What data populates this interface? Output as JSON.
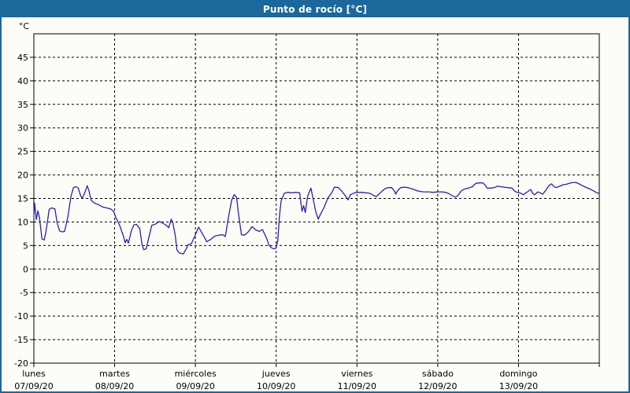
{
  "window": {
    "title": "Punto de rocío [°C]"
  },
  "colors": {
    "title_bar": "#1a689c",
    "frame_border": "#1a689c",
    "title_text": "#ffffff",
    "plot_background": "#fdfdf8",
    "axis": "#000000",
    "grid": "#000000",
    "line": "#2121c0"
  },
  "chart_data": {
    "type": "line",
    "title": "Punto de rocío [°C]",
    "ylabel": "°C",
    "ylim": [
      -20,
      50
    ],
    "y_ticks": [
      45,
      40,
      35,
      30,
      25,
      20,
      15,
      10,
      5,
      0,
      -5,
      -10,
      -15,
      -20
    ],
    "xlim_days": [
      0,
      7
    ],
    "grid": "dashed",
    "legend_position": "none",
    "x_axis_days": [
      {
        "name": "lunes",
        "date": "07/09/20"
      },
      {
        "name": "martes",
        "date": "08/09/20"
      },
      {
        "name": "miércoles",
        "date": "09/09/20"
      },
      {
        "name": "jueves",
        "date": "10/09/20"
      },
      {
        "name": "viernes",
        "date": "11/09/20"
      },
      {
        "name": "sábado",
        "date": "12/09/20"
      },
      {
        "name": "domingo",
        "date": "13/09/20"
      }
    ],
    "series": [
      {
        "name": "Punto de rocío",
        "color": "#2121c0",
        "points": [
          [
            0.0,
            11.5
          ],
          [
            0.01,
            14.0
          ],
          [
            0.03,
            10.5
          ],
          [
            0.05,
            12.4
          ],
          [
            0.07,
            10.8
          ],
          [
            0.1,
            6.4
          ],
          [
            0.13,
            6.2
          ],
          [
            0.15,
            8.0
          ],
          [
            0.19,
            12.7
          ],
          [
            0.22,
            13.0
          ],
          [
            0.26,
            12.8
          ],
          [
            0.29,
            9.7
          ],
          [
            0.32,
            8.1
          ],
          [
            0.35,
            7.9
          ],
          [
            0.38,
            8.0
          ],
          [
            0.42,
            11.0
          ],
          [
            0.46,
            15.5
          ],
          [
            0.49,
            17.3
          ],
          [
            0.52,
            17.5
          ],
          [
            0.55,
            17.2
          ],
          [
            0.58,
            15.5
          ],
          [
            0.6,
            15.1
          ],
          [
            0.63,
            16.2
          ],
          [
            0.66,
            17.7
          ],
          [
            0.68,
            16.8
          ],
          [
            0.71,
            14.6
          ],
          [
            0.75,
            14.0
          ],
          [
            0.8,
            13.7
          ],
          [
            0.85,
            13.2
          ],
          [
            0.9,
            13.0
          ],
          [
            0.95,
            12.8
          ],
          [
            0.99,
            12.2
          ],
          [
            1.01,
            11.1
          ],
          [
            1.06,
            9.4
          ],
          [
            1.11,
            6.9
          ],
          [
            1.13,
            5.6
          ],
          [
            1.15,
            6.3
          ],
          [
            1.17,
            5.5
          ],
          [
            1.21,
            8.3
          ],
          [
            1.24,
            9.4
          ],
          [
            1.27,
            9.5
          ],
          [
            1.31,
            8.6
          ],
          [
            1.34,
            5.2
          ],
          [
            1.36,
            4.1
          ],
          [
            1.39,
            4.3
          ],
          [
            1.43,
            7.2
          ],
          [
            1.46,
            9.3
          ],
          [
            1.5,
            9.5
          ],
          [
            1.55,
            10.1
          ],
          [
            1.58,
            9.9
          ],
          [
            1.63,
            9.4
          ],
          [
            1.67,
            8.8
          ],
          [
            1.7,
            10.6
          ],
          [
            1.72,
            9.9
          ],
          [
            1.75,
            7.2
          ],
          [
            1.77,
            4.1
          ],
          [
            1.8,
            3.4
          ],
          [
            1.85,
            3.2
          ],
          [
            1.89,
            4.4
          ],
          [
            1.91,
            5.2
          ],
          [
            1.95,
            5.4
          ],
          [
            1.99,
            6.9
          ],
          [
            2.04,
            8.9
          ],
          [
            2.09,
            7.4
          ],
          [
            2.14,
            5.8
          ],
          [
            2.19,
            6.3
          ],
          [
            2.24,
            7.0
          ],
          [
            2.29,
            7.2
          ],
          [
            2.34,
            7.3
          ],
          [
            2.37,
            6.9
          ],
          [
            2.41,
            11.1
          ],
          [
            2.45,
            14.7
          ],
          [
            2.48,
            15.8
          ],
          [
            2.51,
            15.2
          ],
          [
            2.53,
            12.2
          ],
          [
            2.57,
            7.3
          ],
          [
            2.61,
            7.2
          ],
          [
            2.66,
            8.0
          ],
          [
            2.7,
            9.0
          ],
          [
            2.75,
            8.3
          ],
          [
            2.79,
            8.0
          ],
          [
            2.83,
            8.4
          ],
          [
            2.88,
            6.6
          ],
          [
            2.91,
            5.1
          ],
          [
            2.95,
            4.4
          ],
          [
            2.98,
            4.3
          ],
          [
            3.0,
            4.5
          ],
          [
            3.02,
            6.1
          ],
          [
            3.04,
            11.1
          ],
          [
            3.06,
            14.4
          ],
          [
            3.1,
            16.1
          ],
          [
            3.14,
            16.3
          ],
          [
            3.19,
            16.2
          ],
          [
            3.24,
            16.3
          ],
          [
            3.29,
            16.2
          ],
          [
            3.32,
            12.3
          ],
          [
            3.34,
            13.5
          ],
          [
            3.36,
            12.0
          ],
          [
            3.39,
            15.5
          ],
          [
            3.43,
            17.2
          ],
          [
            3.45,
            15.5
          ],
          [
            3.49,
            12.2
          ],
          [
            3.52,
            10.6
          ],
          [
            3.55,
            11.7
          ],
          [
            3.59,
            13.0
          ],
          [
            3.64,
            15.1
          ],
          [
            3.69,
            16.3
          ],
          [
            3.72,
            17.4
          ],
          [
            3.77,
            17.3
          ],
          [
            3.81,
            16.6
          ],
          [
            3.86,
            15.5
          ],
          [
            3.89,
            14.7
          ],
          [
            3.92,
            15.8
          ],
          [
            3.97,
            16.2
          ],
          [
            4.0,
            16.3
          ],
          [
            4.05,
            16.3
          ],
          [
            4.11,
            16.2
          ],
          [
            4.16,
            16.1
          ],
          [
            4.21,
            15.6
          ],
          [
            4.24,
            15.4
          ],
          [
            4.29,
            16.2
          ],
          [
            4.34,
            17.0
          ],
          [
            4.38,
            17.3
          ],
          [
            4.43,
            17.3
          ],
          [
            4.47,
            16.4
          ],
          [
            4.48,
            15.9
          ],
          [
            4.5,
            16.6
          ],
          [
            4.54,
            17.3
          ],
          [
            4.59,
            17.4
          ],
          [
            4.63,
            17.3
          ],
          [
            4.69,
            17.0
          ],
          [
            4.75,
            16.6
          ],
          [
            4.82,
            16.4
          ],
          [
            4.89,
            16.4
          ],
          [
            4.94,
            16.3
          ],
          [
            5.0,
            16.4
          ],
          [
            5.04,
            16.4
          ],
          [
            5.1,
            16.3
          ],
          [
            5.14,
            16.0
          ],
          [
            5.19,
            15.5
          ],
          [
            5.22,
            15.3
          ],
          [
            5.25,
            15.6
          ],
          [
            5.29,
            16.6
          ],
          [
            5.33,
            17.0
          ],
          [
            5.38,
            17.2
          ],
          [
            5.43,
            17.5
          ],
          [
            5.47,
            18.2
          ],
          [
            5.51,
            18.3
          ],
          [
            5.56,
            18.3
          ],
          [
            5.59,
            17.8
          ],
          [
            5.61,
            17.2
          ],
          [
            5.66,
            17.2
          ],
          [
            5.7,
            17.3
          ],
          [
            5.74,
            17.6
          ],
          [
            5.78,
            17.5
          ],
          [
            5.82,
            17.4
          ],
          [
            5.87,
            17.3
          ],
          [
            5.92,
            17.2
          ],
          [
            5.95,
            16.6
          ],
          [
            5.98,
            16.3
          ],
          [
            6.01,
            16.2
          ],
          [
            6.03,
            16.1
          ],
          [
            6.06,
            15.8
          ],
          [
            6.09,
            16.2
          ],
          [
            6.12,
            16.5
          ],
          [
            6.15,
            16.9
          ],
          [
            6.18,
            16.0
          ],
          [
            6.2,
            15.8
          ],
          [
            6.24,
            16.4
          ],
          [
            6.27,
            16.2
          ],
          [
            6.3,
            15.9
          ],
          [
            6.34,
            16.8
          ],
          [
            6.38,
            17.8
          ],
          [
            6.41,
            18.1
          ],
          [
            6.44,
            17.5
          ],
          [
            6.47,
            17.3
          ],
          [
            6.51,
            17.6
          ],
          [
            6.55,
            17.9
          ],
          [
            6.59,
            18.0
          ],
          [
            6.63,
            18.2
          ],
          [
            6.67,
            18.4
          ],
          [
            6.71,
            18.4
          ],
          [
            6.75,
            18.1
          ],
          [
            6.78,
            17.8
          ],
          [
            6.83,
            17.4
          ],
          [
            6.87,
            17.1
          ],
          [
            6.92,
            16.7
          ],
          [
            6.96,
            16.3
          ],
          [
            6.99,
            16.1
          ]
        ]
      }
    ]
  }
}
